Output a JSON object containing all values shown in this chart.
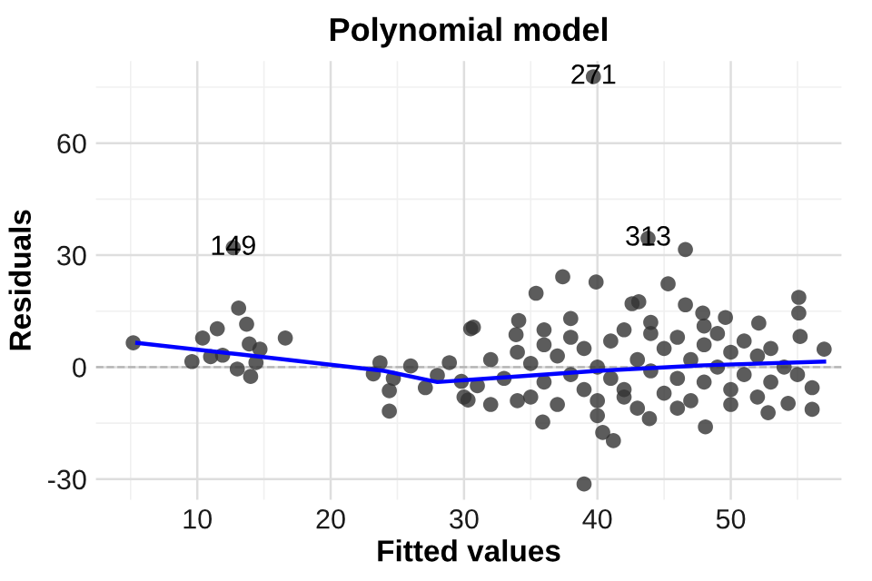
{
  "chart_data": {
    "type": "scatter",
    "title": "Polynomial model",
    "xlabel": "Fitted values",
    "ylabel": "Residuals",
    "xlim": [
      2.4,
      58.3
    ],
    "ylim": [
      -35.5,
      82
    ],
    "xticks": [
      10,
      20,
      30,
      40,
      50
    ],
    "yticks": [
      -30,
      0,
      30,
      60
    ],
    "grid": true,
    "series": [
      {
        "color": "#333333",
        "marker": "circle",
        "x": [
          5.2,
          9.6,
          10.4,
          11.5,
          13.1,
          13.7,
          13.9,
          13,
          14,
          14.7,
          16.6,
          11,
          11.9,
          14.4,
          12.7,
          23.7,
          23.2,
          24.4,
          24.4,
          24.7,
          26,
          27.1,
          28,
          28.9,
          29.8,
          30.5,
          30.3,
          39.7,
          43.8,
          46.6,
          39,
          37.4,
          39.9,
          35.4,
          45.3,
          42.6,
          43.1,
          46.6,
          47.9,
          49.6,
          52.1,
          55.1,
          55.1,
          55.2,
          57,
          56.1,
          56.1,
          52.8,
          54.3,
          48.1,
          43.9,
          40.4,
          41.2,
          35.9,
          30.7,
          34.1,
          33.9,
          31,
          32,
          33,
          34,
          35,
          35,
          36,
          36,
          37,
          37,
          38,
          38,
          39,
          39,
          40,
          40,
          41,
          41,
          42,
          42,
          43,
          43,
          44,
          44,
          45,
          45,
          46,
          46,
          47,
          47,
          48,
          48,
          49,
          49,
          50,
          50,
          51,
          51,
          52,
          52,
          53,
          53,
          54,
          55,
          34,
          36,
          38,
          40,
          42,
          44,
          46,
          48,
          50,
          30,
          32
        ],
        "values": [
          6.5,
          1.5,
          7.8,
          10.3,
          15.8,
          11.5,
          6.2,
          -0.5,
          -2.5,
          4.8,
          7.8,
          2.8,
          3.2,
          1.2,
          32,
          1.2,
          -1.8,
          -6.3,
          -11.8,
          -3,
          0.3,
          -5.5,
          -2.2,
          1.2,
          -3.8,
          10.3,
          -8.8,
          77.8,
          34.5,
          31.5,
          -31.3,
          24.2,
          22.8,
          19.8,
          22.3,
          17,
          17.5,
          16.7,
          14.5,
          13.3,
          11.8,
          18.7,
          14.5,
          8.2,
          4.8,
          -5.5,
          -11.3,
          -12.2,
          -9.7,
          -16,
          -13.8,
          -17.5,
          -19.7,
          -14.7,
          10.7,
          12.5,
          8.7,
          -5,
          2,
          -3,
          4,
          -8,
          1,
          6,
          -4,
          -10,
          3,
          8,
          -2,
          -6,
          5,
          0,
          -9,
          7,
          -3,
          10,
          -6,
          2,
          -11,
          9,
          -1,
          5,
          -7,
          -3,
          8,
          2,
          -9,
          6,
          -4,
          0,
          9,
          -6,
          4,
          -2,
          7,
          -8,
          3,
          5,
          -4,
          0,
          -2,
          -9,
          10,
          13,
          -13,
          -8,
          12,
          -11,
          11,
          -10,
          -8,
          -10
        ]
      },
      {
        "type": "line",
        "marker": "none",
        "color": "#0000ff",
        "x": [
          5.5,
          13,
          24,
          28,
          32,
          40,
          48,
          57
        ],
        "values": [
          6.5,
          3.5,
          -1,
          -4,
          -3,
          -1,
          0.5,
          1.5
        ]
      }
    ],
    "ref_lines": [
      {
        "axis": "y",
        "value": 0,
        "color": "#b3b3b3",
        "line_style": "dashed"
      }
    ],
    "annotations": [
      {
        "text": "149",
        "x": 12.7,
        "y": 32
      },
      {
        "text": "271",
        "x": 39.7,
        "y": 77.8
      },
      {
        "text": "313",
        "x": 43.8,
        "y": 34.5
      }
    ]
  }
}
